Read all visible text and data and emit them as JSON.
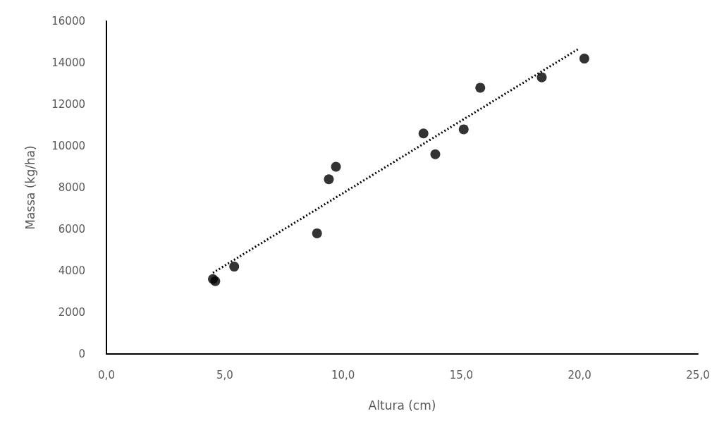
{
  "chart_data": {
    "type": "scatter",
    "xlabel": "Altura (cm)",
    "ylabel": "Massa (kg/ha)",
    "xlim": [
      0,
      25
    ],
    "xticks": [
      {
        "value": 0,
        "label": "0,0"
      },
      {
        "value": 5,
        "label": "5,0"
      },
      {
        "value": 10,
        "label": "10,0"
      },
      {
        "value": 15,
        "label": "15,0"
      },
      {
        "value": 20,
        "label": "20,0"
      },
      {
        "value": 25,
        "label": "25,0"
      }
    ],
    "ylim": [
      0,
      16000
    ],
    "yticks": [
      0,
      2000,
      4000,
      6000,
      8000,
      10000,
      12000,
      14000,
      16000
    ],
    "grid": false,
    "marker": "circle",
    "series": [
      {
        "color": "#000000",
        "x": [
          4.5,
          4.6,
          5.4,
          8.9,
          9.4,
          9.7,
          13.4,
          13.9,
          15.1,
          15.8,
          18.4,
          20.2
        ],
        "values": [
          3600,
          3500,
          4200,
          5800,
          8400,
          9000,
          10600,
          9600,
          10800,
          12800,
          13300,
          14200
        ]
      },
      {
        "type": "line",
        "color": "#000000",
        "line_style": "dotted",
        "marker": "none",
        "x": [
          4.5,
          20.0
        ],
        "values": [
          3900,
          14700
        ]
      }
    ]
  }
}
